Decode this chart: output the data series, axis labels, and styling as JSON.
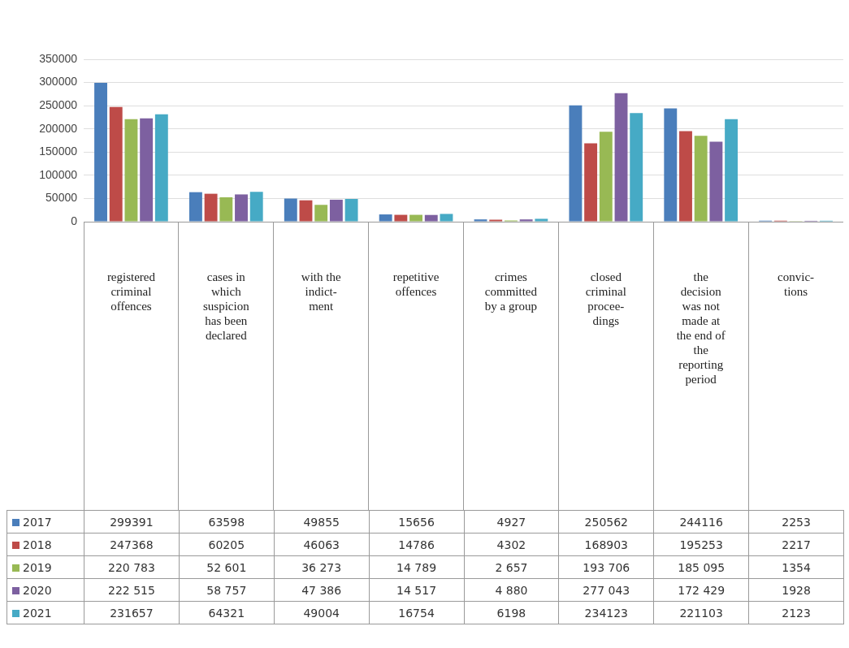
{
  "chart_data": {
    "type": "bar",
    "categories": [
      "registered\ncriminal\noffences",
      "cases in\nwhich\nsuspicion\nhas been\ndeclared",
      "with the\nindict-\nment",
      "repetitive\noffences",
      "crimes\ncommitted\nby a group",
      "closed\ncriminal\nprocee-\ndings",
      "the\ndecision\nwas not\nmade at\nthe end of\nthe\nreporting\nperiod",
      "convic-\ntions"
    ],
    "series": [
      {
        "name": "2017",
        "color": "#4a7ebb",
        "values": [
          299391,
          63598,
          49855,
          15656,
          4927,
          250562,
          244116,
          2253
        ],
        "value_labels": [
          "299391",
          "63598",
          "49855",
          "15656",
          "4927",
          "250562",
          "244116",
          "2253"
        ]
      },
      {
        "name": "2018",
        "color": "#be4b48",
        "values": [
          247368,
          60205,
          46063,
          14786,
          4302,
          168903,
          195253,
          2217
        ],
        "value_labels": [
          "247368",
          "60205",
          "46063",
          "14786",
          "4302",
          "168903",
          "195253",
          "2217"
        ]
      },
      {
        "name": "2019",
        "color": "#98b954",
        "values": [
          220783,
          52601,
          36273,
          14789,
          2657,
          193706,
          185095,
          1354
        ],
        "value_labels": [
          "220 783",
          "52 601",
          "36 273",
          "14 789",
          "2 657",
          "193 706",
          "185 095",
          "1354"
        ]
      },
      {
        "name": "2020",
        "color": "#7d60a0",
        "values": [
          222515,
          58757,
          47386,
          14517,
          4880,
          277043,
          172429,
          1928
        ],
        "value_labels": [
          "222 515",
          "58 757",
          "47 386",
          "14 517",
          "4 880",
          "277 043",
          "172 429",
          "1928"
        ]
      },
      {
        "name": "2021",
        "color": "#46aac5",
        "values": [
          231657,
          64321,
          49004,
          16754,
          6198,
          234123,
          221103,
          2123
        ],
        "value_labels": [
          "231657",
          "64321",
          "49004",
          "16754",
          "6198",
          "234123",
          "221103",
          "2123"
        ]
      }
    ],
    "ylim": [
      0,
      350000
    ],
    "yticks": [
      0,
      50000,
      100000,
      150000,
      200000,
      250000,
      300000,
      350000
    ],
    "grid": "y",
    "legend": "bottom"
  }
}
